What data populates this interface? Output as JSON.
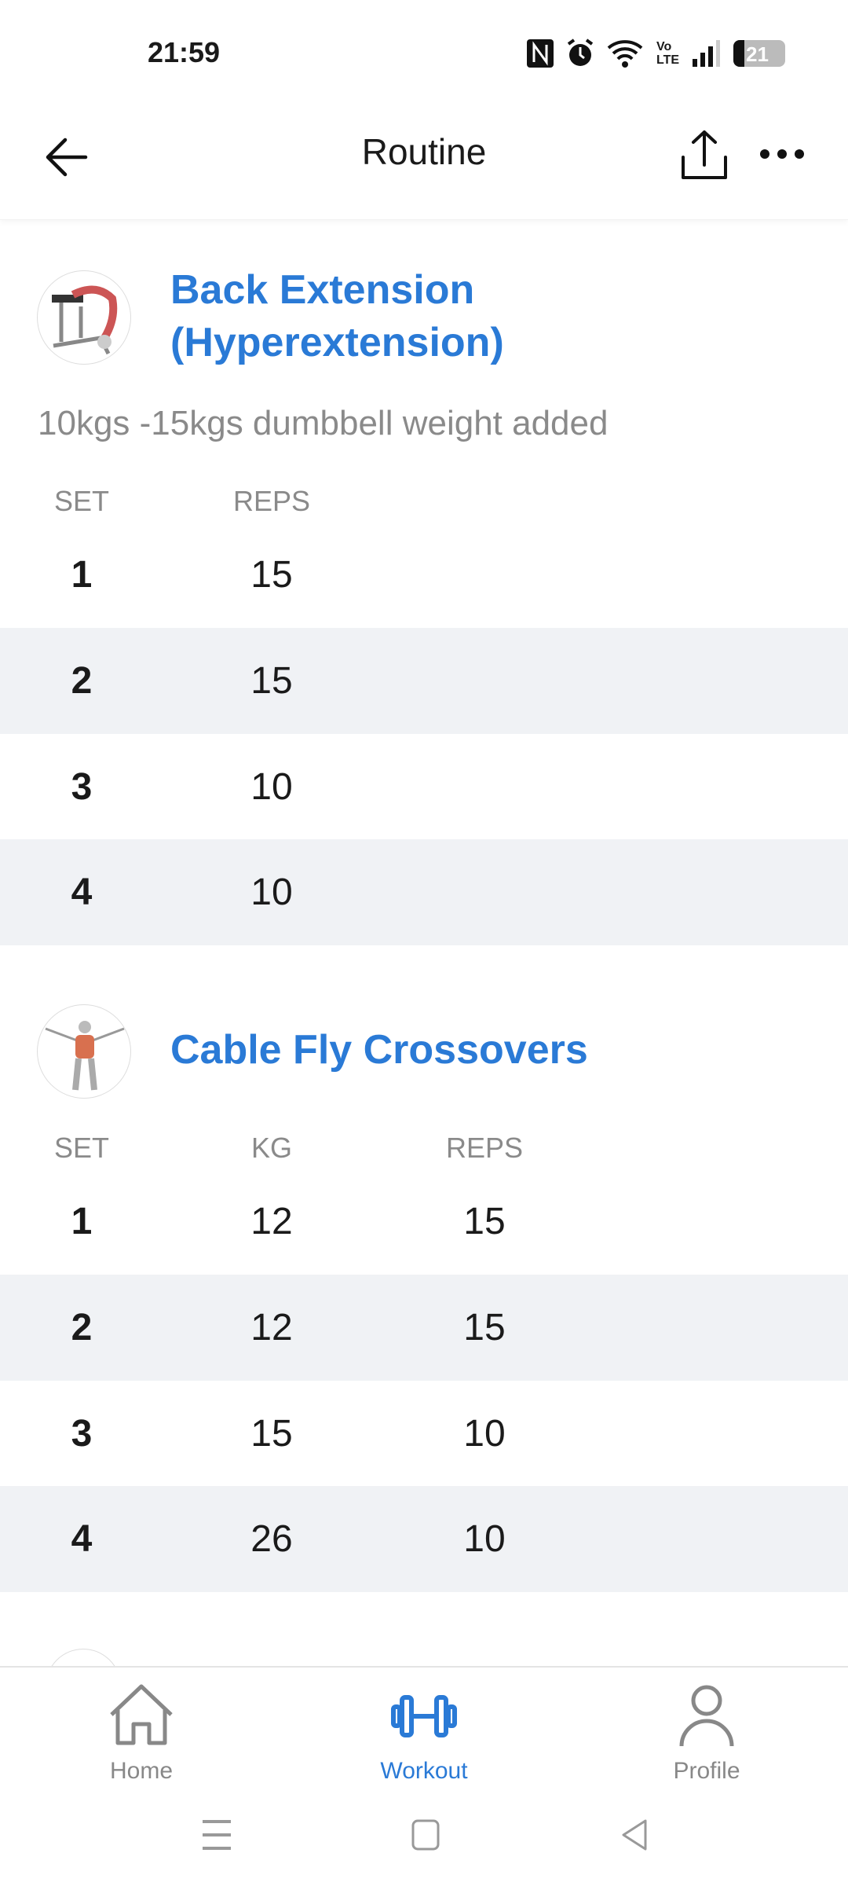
{
  "status_bar": {
    "time": "21:59",
    "battery": "21",
    "icons": [
      "nfc-icon",
      "alarm-icon",
      "wifi-icon",
      "volte-icon",
      "signal-icon",
      "battery-icon"
    ],
    "volte_label": "Vo LTE"
  },
  "header": {
    "title": "Routine",
    "back_icon": "arrow-left-icon",
    "share_icon": "share-icon",
    "more_icon": "more-horizontal-icon"
  },
  "exercises": [
    {
      "title_line1": "Back Extension",
      "title_line2": "(Hyperextension)",
      "note": "10kgs -15kgs dumbbell weight added",
      "columns": {
        "set": "SET",
        "reps": "REPS"
      },
      "sets": [
        {
          "set": "1",
          "reps": "15"
        },
        {
          "set": "2",
          "reps": "15"
        },
        {
          "set": "3",
          "reps": "10"
        },
        {
          "set": "4",
          "reps": "10"
        }
      ]
    },
    {
      "title": "Cable Fly Crossovers",
      "columns": {
        "set": "SET",
        "kg": "KG",
        "reps": "REPS"
      },
      "sets": [
        {
          "set": "1",
          "kg": "12",
          "reps": "15"
        },
        {
          "set": "2",
          "kg": "12",
          "reps": "15"
        },
        {
          "set": "3",
          "kg": "15",
          "reps": "10"
        },
        {
          "set": "4",
          "kg": "26",
          "reps": "10"
        }
      ]
    }
  ],
  "bottom_nav": {
    "items": [
      {
        "label": "Home",
        "icon": "home-icon"
      },
      {
        "label": "Workout",
        "icon": "dumbbell-icon",
        "active": true
      },
      {
        "label": "Profile",
        "icon": "person-icon"
      }
    ]
  },
  "colors": {
    "accent": "#2a7ad6",
    "row_alt": "#f0f2f5",
    "muted": "#8a8a8a"
  }
}
